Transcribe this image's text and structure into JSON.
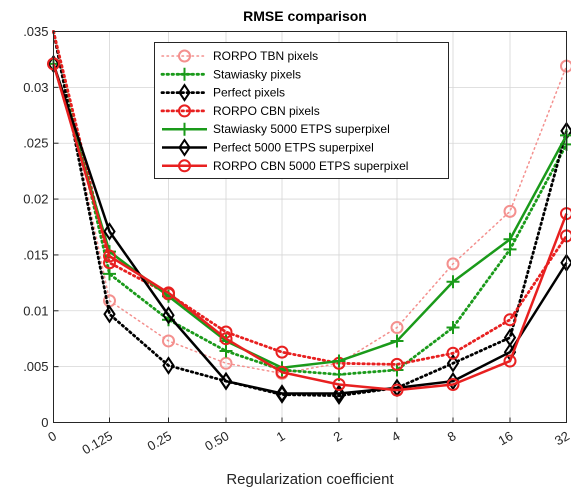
{
  "chart_data": {
    "type": "line",
    "title": "RMSE comparison",
    "xlabel": "Regularization coefficient",
    "ylabel": "",
    "categories": [
      "0",
      "0.125",
      "0.25",
      "0.50",
      "1",
      "2",
      "4",
      "8",
      "16",
      "32"
    ],
    "ylim": [
      0,
      0.035
    ],
    "yticks": [
      0,
      0.005,
      0.01,
      0.015,
      0.02,
      0.025,
      0.03,
      0.035
    ],
    "ytick_labels": [
      "0",
      ".005",
      "0.01",
      ".015",
      "0.02",
      ".025",
      "0.03",
      ".035"
    ],
    "grid": true,
    "legend_position": "top-center",
    "series": [
      {
        "name": "RORPO TBN pixels",
        "color": "#f4908e",
        "style": "dotted",
        "marker": "circle",
        "markers_at": [
          1,
          2,
          3,
          4,
          5,
          6,
          7,
          8,
          9
        ],
        "values": [
          0.0355,
          0.0109,
          0.0073,
          0.0053,
          0.0044,
          0.0053,
          0.0085,
          0.0142,
          0.0189,
          0.0319
        ]
      },
      {
        "name": "Stawiasky pixels",
        "color": "#1a9a1a",
        "style": "dotted",
        "marker": "plus",
        "markers_at": [
          1,
          2,
          3,
          4,
          5,
          6,
          7,
          8,
          9
        ],
        "values": [
          0.0355,
          0.0133,
          0.0092,
          0.0064,
          0.0047,
          0.0043,
          0.0047,
          0.0085,
          0.0155,
          0.0249
        ]
      },
      {
        "name": "Perfect pixels",
        "color": "#000000",
        "style": "dotted",
        "marker": "diamond",
        "markers_at": [
          1,
          2,
          3,
          4,
          5,
          6,
          7,
          8,
          9
        ],
        "values": [
          0.0355,
          0.0097,
          0.0051,
          0.0037,
          0.0025,
          0.0024,
          0.0031,
          0.0053,
          0.0076,
          0.0261
        ]
      },
      {
        "name": "RORPO CBN pixels",
        "color": "#e82020",
        "style": "dotted",
        "marker": "circle",
        "markers_at": [
          1,
          2,
          3,
          4,
          5,
          6,
          7,
          8,
          9
        ],
        "values": [
          0.0355,
          0.0143,
          0.0115,
          0.0081,
          0.0063,
          0.0053,
          0.0052,
          0.0062,
          0.0092,
          0.0167
        ]
      },
      {
        "name": "Stawiasky 5000 ETPS superpixel",
        "color": "#1a9a1a",
        "style": "solid",
        "marker": "plus",
        "markers_at": [
          0,
          1,
          2,
          3,
          4,
          5,
          6,
          7,
          8,
          9
        ],
        "values": [
          0.0321,
          0.0153,
          0.0113,
          0.0073,
          0.0049,
          0.0055,
          0.0073,
          0.0126,
          0.0164,
          0.0257
        ]
      },
      {
        "name": "Perfect 5000 ETPS superpixel",
        "color": "#000000",
        "style": "solid",
        "marker": "diamond",
        "markers_at": [
          0,
          1,
          2,
          3,
          4,
          5,
          6,
          7,
          8,
          9
        ],
        "values": [
          0.0321,
          0.0171,
          0.0096,
          0.0037,
          0.0026,
          0.0026,
          0.0031,
          0.0037,
          0.0063,
          0.0143
        ]
      },
      {
        "name": "RORPO CBN 5000 ETPS superpixel",
        "color": "#e82020",
        "style": "solid",
        "marker": "circle",
        "markers_at": [
          0,
          1,
          2,
          3,
          4,
          5,
          6,
          7,
          8,
          9
        ],
        "values": [
          0.0321,
          0.0149,
          0.0116,
          0.0075,
          0.0045,
          0.0034,
          0.0029,
          0.0034,
          0.0055,
          0.0187
        ]
      }
    ]
  }
}
